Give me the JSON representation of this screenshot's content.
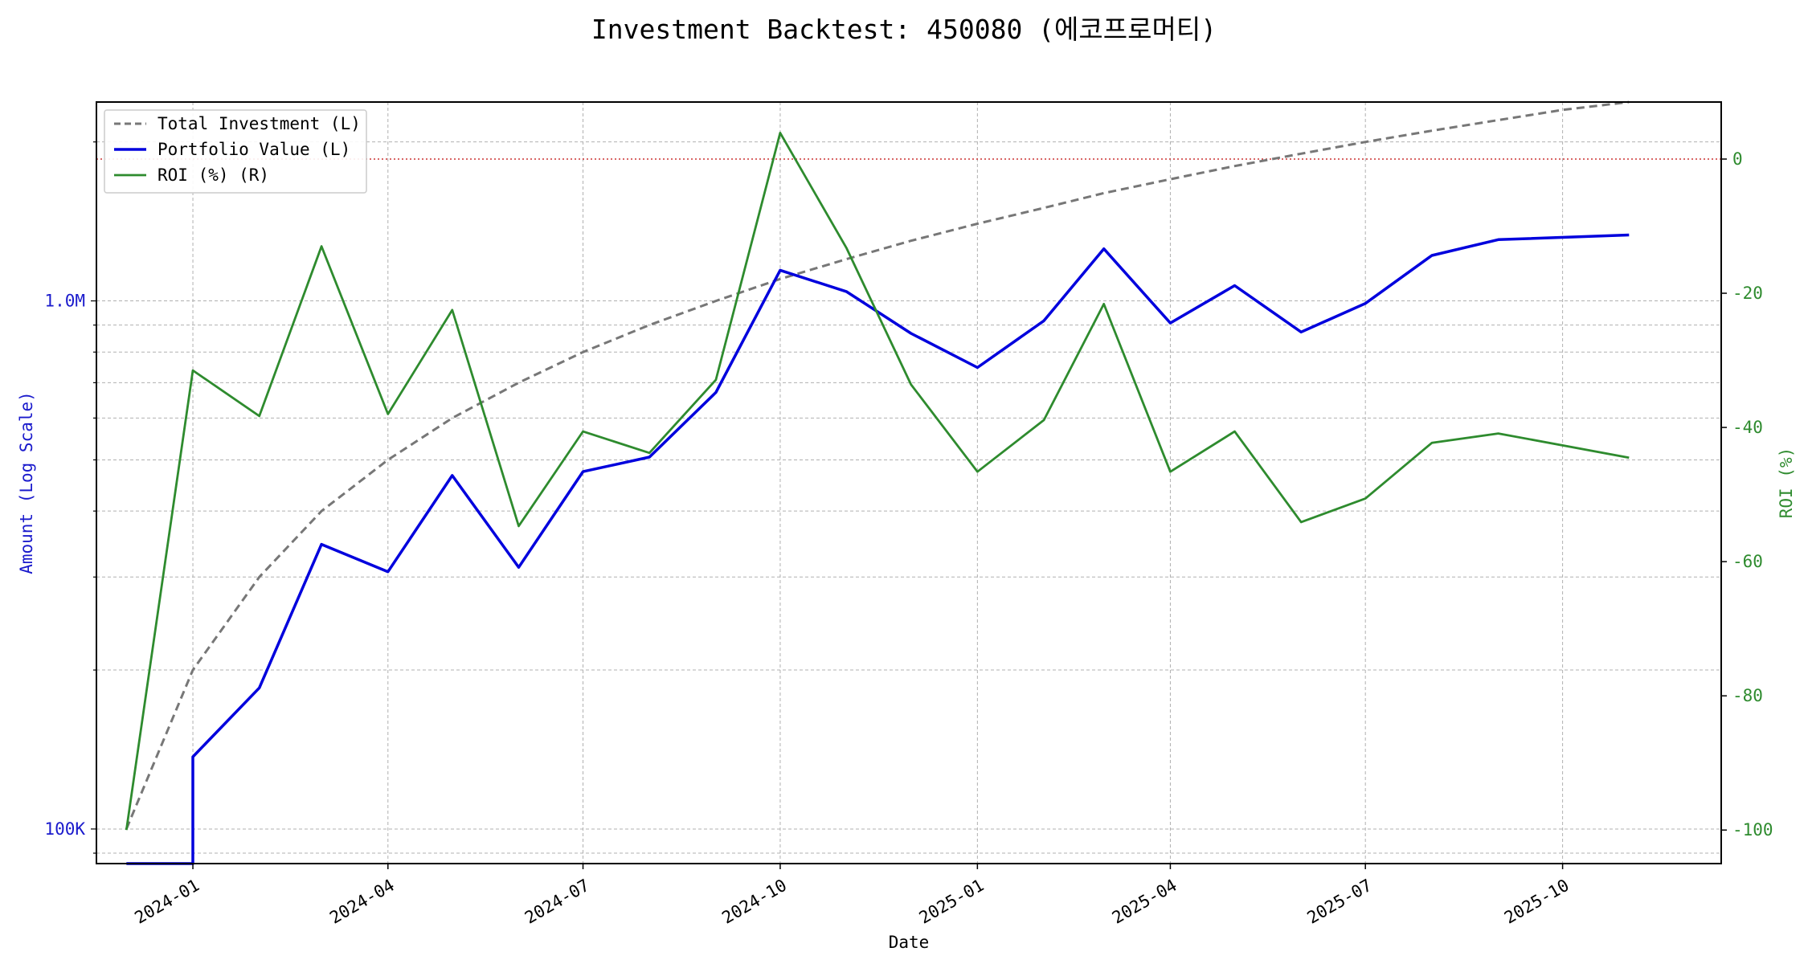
{
  "chart_data": {
    "type": "line",
    "title": "Investment Backtest: 450080 (에코프로머티)",
    "xlabel": "Date",
    "ylabel_left": "Amount (Log Scale)",
    "ylabel_right": "ROI (%)",
    "left_scale": "log",
    "ylim_left": [
      86000,
      2380000
    ],
    "ylim_right": [
      -105,
      8.5
    ],
    "x_range": [
      "2023-11-17",
      "2025-12-14"
    ],
    "left_ticks": [
      {
        "value": 100000,
        "label": "100K"
      },
      {
        "value": 1000000,
        "label": "1.0M"
      }
    ],
    "right_ticks": [
      0,
      -20,
      -40,
      -60,
      -80,
      -100
    ],
    "x_ticks": [
      {
        "date": "2024-01-01",
        "label": "2024-01"
      },
      {
        "date": "2024-04-01",
        "label": "2024-04"
      },
      {
        "date": "2024-07-01",
        "label": "2024-07"
      },
      {
        "date": "2024-10-01",
        "label": "2024-10"
      },
      {
        "date": "2025-01-01",
        "label": "2025-01"
      },
      {
        "date": "2025-04-01",
        "label": "2025-04"
      },
      {
        "date": "2025-07-01",
        "label": "2025-07"
      },
      {
        "date": "2025-10-01",
        "label": "2025-10"
      }
    ],
    "grid": true,
    "legend_position": "top-left",
    "reference_line": {
      "axis": "right",
      "value": 0,
      "color": "#cc3333",
      "style": "dotted"
    },
    "series": [
      {
        "name": "Total Investment (L)",
        "axis": "left",
        "color": "#777777",
        "style": "dashed",
        "points": [
          [
            "2023-12-01",
            100000
          ],
          [
            "2024-01-01",
            200000
          ],
          [
            "2024-02-01",
            300000
          ],
          [
            "2024-03-01",
            400000
          ],
          [
            "2024-04-01",
            500000
          ],
          [
            "2024-05-01",
            600000
          ],
          [
            "2024-06-01",
            700000
          ],
          [
            "2024-07-01",
            800000
          ],
          [
            "2024-08-01",
            900000
          ],
          [
            "2024-09-01",
            1000000
          ],
          [
            "2024-10-01",
            1100000
          ],
          [
            "2024-11-01",
            1200000
          ],
          [
            "2024-12-01",
            1300000
          ],
          [
            "2025-01-01",
            1400000
          ],
          [
            "2025-02-01",
            1500000
          ],
          [
            "2025-03-01",
            1600000
          ],
          [
            "2025-04-01",
            1700000
          ],
          [
            "2025-05-01",
            1800000
          ],
          [
            "2025-06-01",
            1900000
          ],
          [
            "2025-07-01",
            2000000
          ],
          [
            "2025-08-01",
            2100000
          ],
          [
            "2025-09-01",
            2200000
          ],
          [
            "2025-10-01",
            2300000
          ],
          [
            "2025-11-01",
            2400000
          ]
        ]
      },
      {
        "name": "Portfolio Value (L)",
        "axis": "left",
        "color": "#0000dd",
        "style": "solid",
        "points": [
          [
            "2023-12-01",
            0
          ],
          [
            "2024-01-01",
            0
          ],
          [
            "2024-01-01",
            137000
          ],
          [
            "2024-02-01",
            185000
          ],
          [
            "2024-03-01",
            346000
          ],
          [
            "2024-04-01",
            307000
          ],
          [
            "2024-05-01",
            467000
          ],
          [
            "2024-06-01",
            313000
          ],
          [
            "2024-07-01",
            475000
          ],
          [
            "2024-08-01",
            506000
          ],
          [
            "2024-09-01",
            671000
          ],
          [
            "2024-10-01",
            1143000
          ],
          [
            "2024-11-01",
            1041000
          ],
          [
            "2024-12-01",
            868000
          ],
          [
            "2025-01-01",
            748000
          ],
          [
            "2025-02-01",
            917000
          ],
          [
            "2025-03-01",
            1255000
          ],
          [
            "2025-04-01",
            908000
          ],
          [
            "2025-05-01",
            1069000
          ],
          [
            "2025-06-01",
            873000
          ],
          [
            "2025-07-01",
            989000
          ],
          [
            "2025-08-01",
            1219000
          ],
          [
            "2025-09-01",
            1306000
          ],
          [
            "2025-11-01",
            1333000
          ]
        ]
      },
      {
        "name": "ROI (%) (R)",
        "axis": "right",
        "color": "#2e8b2e",
        "style": "solid",
        "points": [
          [
            "2023-12-01",
            -100
          ],
          [
            "2024-01-01",
            -31.5
          ],
          [
            "2024-02-01",
            -38.3
          ],
          [
            "2024-03-01",
            -13.0
          ],
          [
            "2024-04-01",
            -38.0
          ],
          [
            "2024-05-01",
            -22.5
          ],
          [
            "2024-06-01",
            -54.7
          ],
          [
            "2024-07-01",
            -40.6
          ],
          [
            "2024-08-01",
            -43.8
          ],
          [
            "2024-09-01",
            -32.9
          ],
          [
            "2024-10-01",
            3.9
          ],
          [
            "2024-11-01",
            -13.3
          ],
          [
            "2024-12-01",
            -33.6
          ],
          [
            "2025-01-01",
            -46.6
          ],
          [
            "2025-02-01",
            -38.9
          ],
          [
            "2025-03-01",
            -21.6
          ],
          [
            "2025-04-01",
            -46.6
          ],
          [
            "2025-05-01",
            -40.6
          ],
          [
            "2025-06-01",
            -54.1
          ],
          [
            "2025-07-01",
            -50.6
          ],
          [
            "2025-08-01",
            -42.3
          ],
          [
            "2025-09-01",
            -40.9
          ],
          [
            "2025-11-01",
            -44.5
          ]
        ]
      }
    ]
  }
}
